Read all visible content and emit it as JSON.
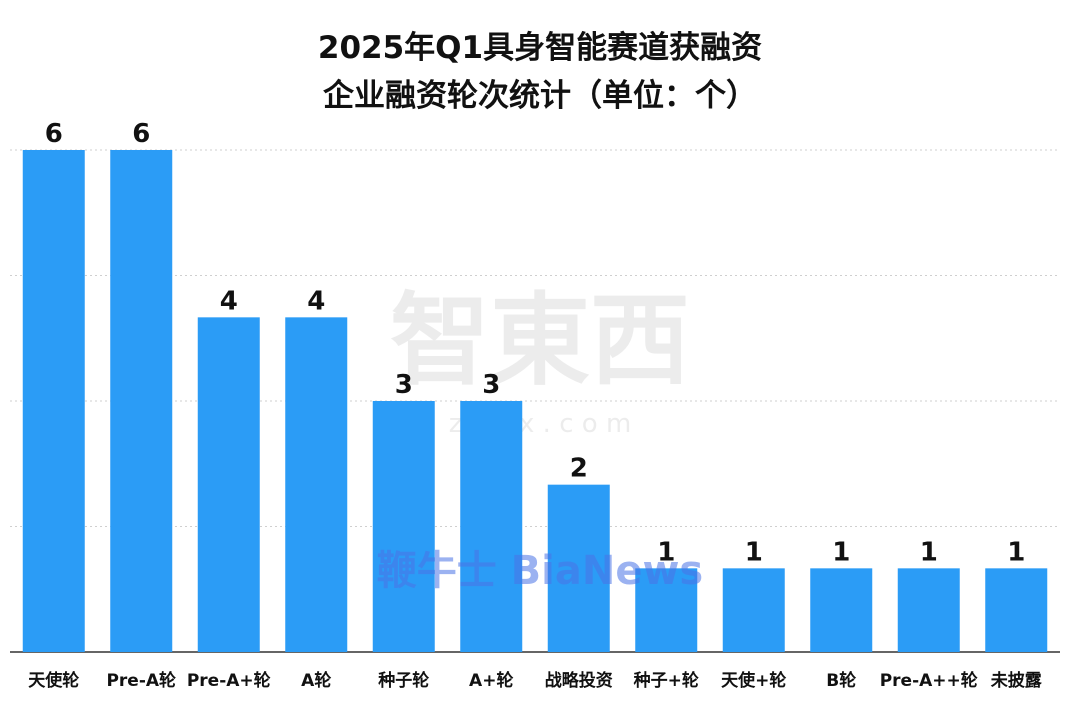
{
  "chart_data": {
    "type": "bar",
    "title": [
      "2025年Q1具身智能赛道获融资",
      "企业融资轮次统计（单位：个）"
    ],
    "categories": [
      "天使轮",
      "Pre-A轮",
      "Pre-A+轮",
      "A轮",
      "种子轮",
      "A+轮",
      "战略投资",
      "种子+轮",
      "天使+轮",
      "B轮",
      "Pre-A++轮",
      "未披露"
    ],
    "values": [
      6,
      6,
      4,
      4,
      3,
      3,
      2,
      1,
      1,
      1,
      1,
      1
    ],
    "ylim": [
      0,
      6
    ],
    "grid": true,
    "bar_color": "#2b9cf6",
    "watermarks": [
      "智東西",
      "z d x x . c o m",
      "鞭牛士 BiaNews"
    ]
  }
}
